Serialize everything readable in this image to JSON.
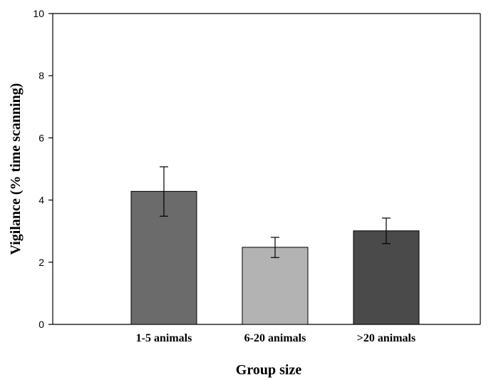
{
  "chart_data": {
    "type": "bar",
    "title": "",
    "xlabel": "Group size",
    "ylabel": "Vigilance (% time scanning)",
    "categories": [
      "1-5 animals",
      "6-20 animals",
      ">20 animals"
    ],
    "values": [
      4.28,
      2.48,
      3.01
    ],
    "error_low": [
      3.48,
      2.15,
      2.6
    ],
    "error_high": [
      5.07,
      2.8,
      3.42
    ],
    "bar_colors": [
      "#6b6b6b",
      "#b3b3b3",
      "#4a4a4a"
    ],
    "ylim": [
      0,
      10
    ],
    "yticks": [
      "0",
      "2",
      "4",
      "6",
      "8",
      "10"
    ],
    "grid": false,
    "legend": "none"
  }
}
